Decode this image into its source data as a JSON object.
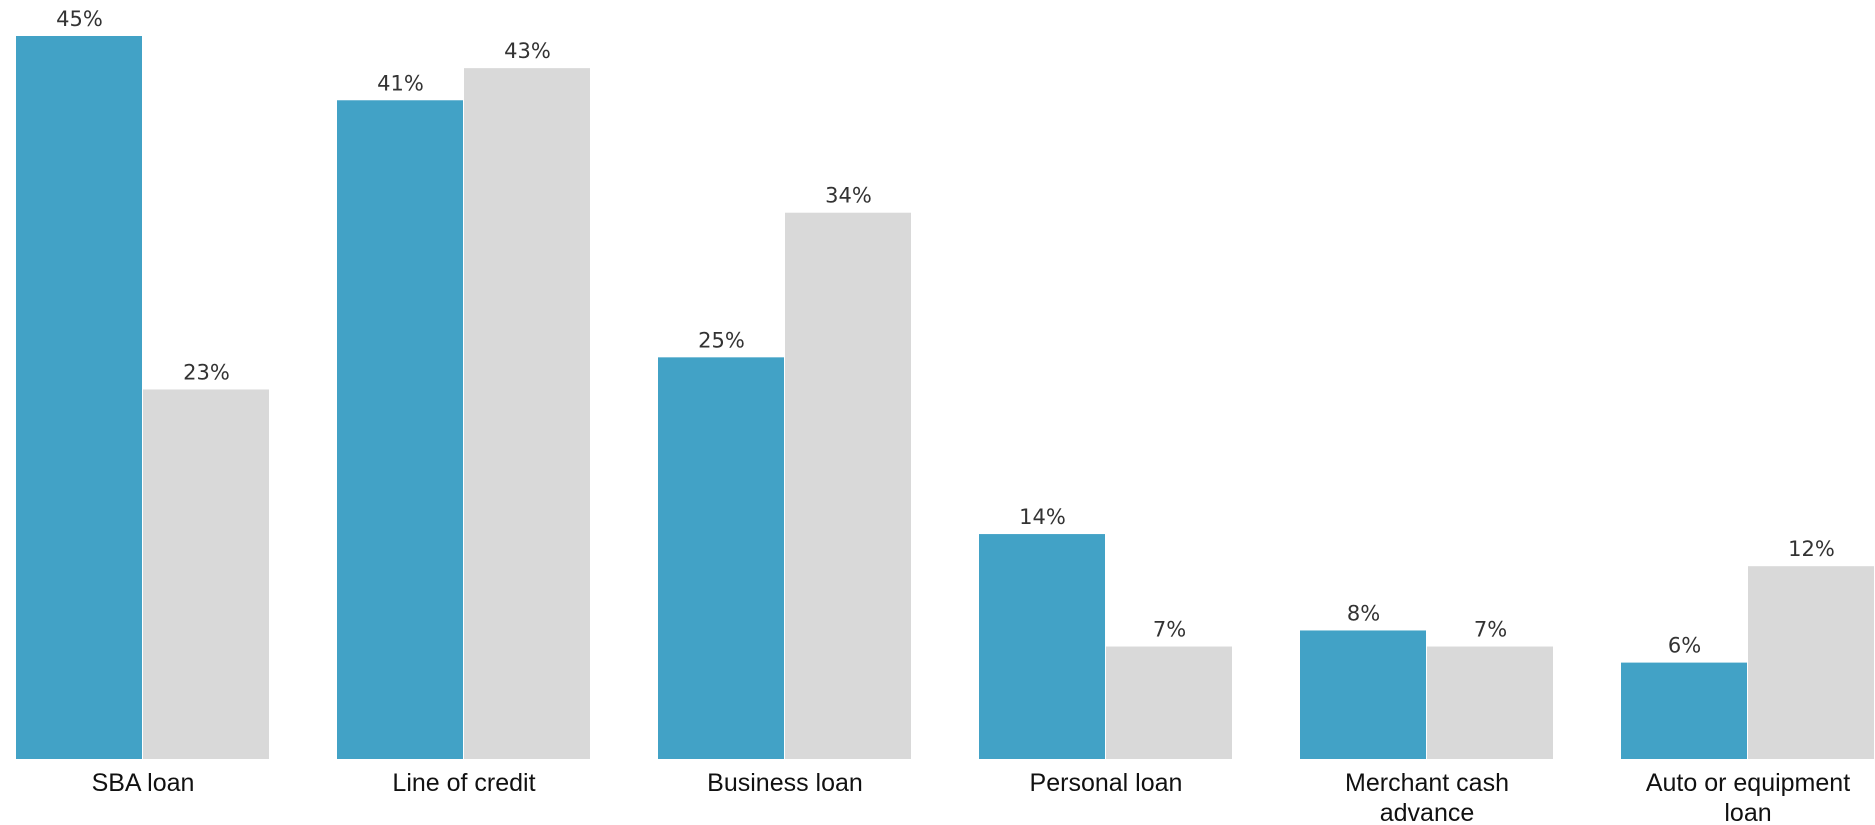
{
  "chart_data": {
    "type": "bar",
    "categories": [
      "SBA loan",
      "Line of credit",
      "Business loan",
      "Personal loan",
      "Merchant cash\nadvance",
      "Auto or equipment\nloan"
    ],
    "series": [
      {
        "values": [
          45,
          41,
          25,
          14,
          8,
          6
        ],
        "color": "#42a2c6"
      },
      {
        "values": [
          23,
          43,
          34,
          7,
          7,
          12
        ],
        "color": "#d9d9d9"
      }
    ],
    "value_suffix": "%",
    "ylim": [
      0,
      45
    ],
    "grid": false,
    "legend": "none"
  }
}
